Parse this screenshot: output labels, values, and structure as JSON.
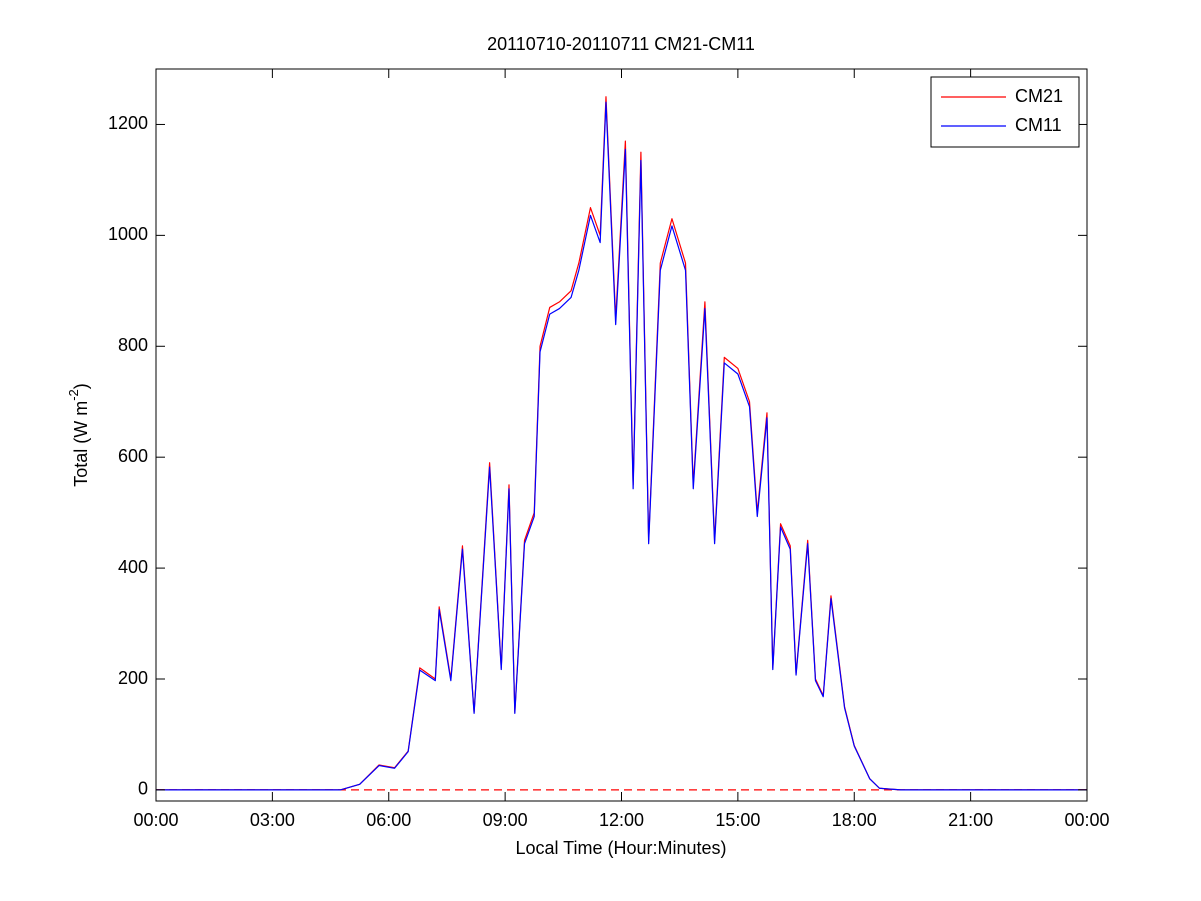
{
  "chart_data": {
    "type": "line",
    "title": "20110710-20110711 CM21-CM11",
    "xlabel": "Local Time (Hour:Minutes)",
    "ylabel": {
      "text": "Total (W m",
      "superscript": "-2",
      "suffix": ")"
    },
    "x": [
      0,
      4.75,
      5.25,
      5.75,
      6.15,
      6.5,
      6.8,
      7.2,
      7.3,
      7.6,
      7.9,
      8.2,
      8.6,
      8.9,
      9.1,
      9.25,
      9.5,
      9.75,
      9.9,
      10.15,
      10.4,
      10.7,
      10.9,
      11.2,
      11.45,
      11.6,
      11.85,
      12.1,
      12.3,
      12.5,
      12.7,
      13,
      13.3,
      13.65,
      13.85,
      14.15,
      14.4,
      14.65,
      15,
      15.3,
      15.5,
      15.75,
      15.9,
      16.1,
      16.35,
      16.5,
      16.8,
      17,
      17.2,
      17.4,
      17.75,
      18,
      18.4,
      18.65,
      19.2,
      24
    ],
    "series": [
      {
        "name": "CM21",
        "color": "#ff0000",
        "values": [
          0,
          0,
          10,
          45,
          40,
          70,
          220,
          200,
          330,
          200,
          440,
          140,
          590,
          220,
          550,
          140,
          450,
          500,
          800,
          870,
          880,
          900,
          950,
          1050,
          1000,
          1250,
          850,
          1170,
          550,
          1150,
          450,
          950,
          1030,
          950,
          550,
          880,
          450,
          780,
          760,
          700,
          500,
          680,
          220,
          480,
          440,
          210,
          450,
          200,
          170,
          350,
          150,
          80,
          20,
          3,
          0,
          0
        ]
      },
      {
        "name": "CM11",
        "color": "#0000ff",
        "values": [
          0,
          0,
          10,
          44,
          39,
          69,
          216,
          197,
          325,
          197,
          434,
          138,
          582,
          217,
          543,
          138,
          444,
          493,
          790,
          858,
          868,
          888,
          937,
          1036,
          987,
          1240,
          839,
          1155,
          543,
          1135,
          444,
          937,
          1017,
          937,
          543,
          868,
          444,
          770,
          750,
          691,
          493,
          671,
          217,
          474,
          434,
          207,
          444,
          197,
          168,
          345,
          148,
          79,
          20,
          3,
          0,
          0
        ]
      }
    ],
    "zero_line": {
      "value": 0,
      "color": "#ff0000",
      "style": "dashed"
    },
    "xlim": [
      0,
      24
    ],
    "xticks": [
      {
        "value": 0,
        "label": "00:00"
      },
      {
        "value": 3,
        "label": "03:00"
      },
      {
        "value": 6,
        "label": "06:00"
      },
      {
        "value": 9,
        "label": "09:00"
      },
      {
        "value": 12,
        "label": "12:00"
      },
      {
        "value": 15,
        "label": "15:00"
      },
      {
        "value": 18,
        "label": "18:00"
      },
      {
        "value": 21,
        "label": "21:00"
      },
      {
        "value": 24,
        "label": "00:00"
      }
    ],
    "ylim": [
      -20,
      1300
    ],
    "yticks": [
      0,
      200,
      400,
      600,
      800,
      1000,
      1200
    ],
    "grid": false,
    "legend": "northeast"
  }
}
